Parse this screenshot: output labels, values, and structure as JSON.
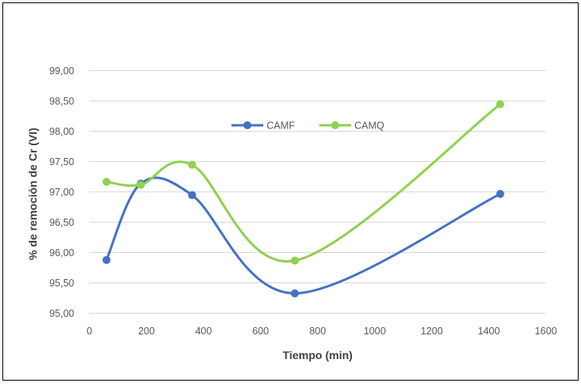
{
  "chart_data": {
    "type": "line",
    "title": "",
    "xlabel": "Tiempo (min)",
    "ylabel": "% de remoción de Cr (VI)",
    "xlim": [
      0,
      1600
    ],
    "ylim": [
      95.0,
      99.0
    ],
    "x_ticks": [
      0,
      200,
      400,
      600,
      800,
      1000,
      1200,
      1400,
      1600
    ],
    "x_tick_labels": [
      "0",
      "200",
      "400",
      "600",
      "800",
      "1000",
      "1200",
      "1400",
      "1600"
    ],
    "y_ticks": [
      95.0,
      95.5,
      96.0,
      96.5,
      97.0,
      97.5,
      98.0,
      98.5,
      99.0
    ],
    "y_tick_labels": [
      "95,00",
      "95,50",
      "96,00",
      "96,50",
      "97,00",
      "97,50",
      "98,00",
      "98,50",
      "99,00"
    ],
    "grid": "horizontal",
    "legend_position": "top-center",
    "smooth": true,
    "series": [
      {
        "name": "CAMF",
        "color": "#4472c4",
        "x": [
          60,
          180,
          360,
          720,
          1440
        ],
        "values": [
          95.87,
          97.13,
          96.94,
          95.32,
          96.96
        ]
      },
      {
        "name": "CAMQ",
        "color": "#8fd14f",
        "x": [
          60,
          180,
          360,
          720,
          1440
        ],
        "values": [
          97.16,
          97.11,
          97.44,
          95.86,
          98.44
        ]
      }
    ]
  }
}
